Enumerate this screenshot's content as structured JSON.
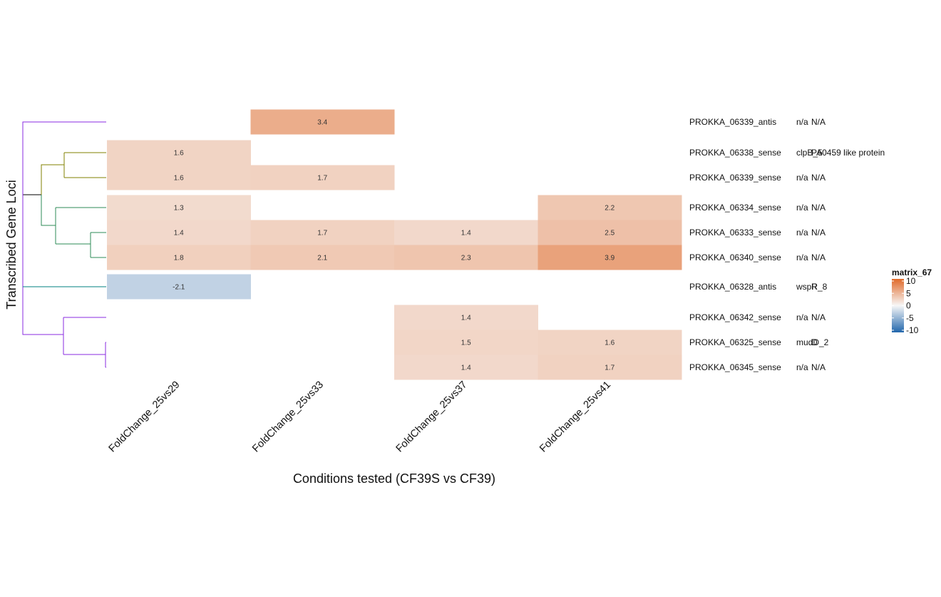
{
  "chart_data": {
    "type": "heatmap",
    "xlabel": "Conditions tested (CF39S vs CF39)",
    "ylabel": "Transcribed Gene Loci",
    "columns": [
      "FoldChange_25vs29",
      "FoldChange_25vs33",
      "FoldChange_25vs37",
      "FoldChange_25vs41"
    ],
    "rows": [
      {
        "label": "PROKKA_06339_antis",
        "annot1": "n/a",
        "annot2": "N/A",
        "values": [
          null,
          3.4,
          null,
          null
        ]
      },
      {
        "label": "PROKKA_06338_sense",
        "annot1": "clpB_5",
        "annot2": "PA0459 like protein",
        "values": [
          1.6,
          null,
          null,
          null
        ]
      },
      {
        "label": "PROKKA_06339_sense",
        "annot1": "n/a",
        "annot2": "N/A",
        "values": [
          1.6,
          1.7,
          null,
          null
        ]
      },
      {
        "label": "PROKKA_06334_sense",
        "annot1": "n/a",
        "annot2": "N/A",
        "values": [
          1.3,
          null,
          null,
          2.2
        ]
      },
      {
        "label": "PROKKA_06333_sense",
        "annot1": "n/a",
        "annot2": "N/A",
        "values": [
          1.4,
          1.7,
          1.4,
          2.5
        ]
      },
      {
        "label": "PROKKA_06340_sense",
        "annot1": "n/a",
        "annot2": "N/A",
        "values": [
          1.8,
          2.1,
          2.3,
          3.9
        ]
      },
      {
        "label": "PROKKA_06328_antis",
        "annot1": "wspR_8",
        "annot2": "R",
        "values": [
          -2.1,
          null,
          null,
          null
        ]
      },
      {
        "label": "PROKKA_06342_sense",
        "annot1": "n/a",
        "annot2": "N/A",
        "values": [
          null,
          null,
          1.4,
          null
        ]
      },
      {
        "label": "PROKKA_06325_sense",
        "annot1": "mudD_2",
        "annot2": "D",
        "values": [
          null,
          null,
          1.5,
          1.6
        ]
      },
      {
        "label": "PROKKA_06345_sense",
        "annot1": "n/a",
        "annot2": "N/A",
        "values": [
          null,
          null,
          1.4,
          1.7
        ]
      }
    ],
    "legend": {
      "title": "matrix_67",
      "ticks": [
        "10",
        "5",
        "0",
        "-5",
        "-10"
      ],
      "tick_values": [
        10,
        5,
        0,
        -5,
        -10
      ],
      "range": [
        -10,
        10
      ],
      "colors": {
        "low": "#2166ac",
        "mid": "#f7f7f7",
        "high": "#e06a2a"
      }
    },
    "dendrogram_colors": [
      "#000000",
      "#8a2be2",
      "#808000",
      "#2e8b57",
      "#008080"
    ]
  }
}
